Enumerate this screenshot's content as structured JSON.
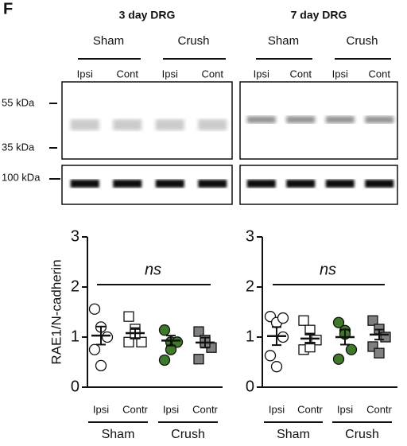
{
  "panel_label": "F",
  "markers": [
    "55 kDa",
    "35 kDa",
    "100 kDa"
  ],
  "blots": [
    {
      "title": "3 day DRG",
      "groups": [
        "Sham",
        "Crush"
      ],
      "lanes": [
        "Ipsi",
        "Cont",
        "Ipsi",
        "Cont"
      ]
    },
    {
      "title": "7 day DRG",
      "groups": [
        "Sham",
        "Crush"
      ],
      "lanes": [
        "Ipsi",
        "Cont",
        "Ipsi",
        "Cont"
      ]
    }
  ],
  "chart_data": [
    {
      "type": "dot",
      "ylabel": "RAE1/N-cadherin",
      "annotation": "ns",
      "ylim": [
        0,
        3
      ],
      "yticks": [
        0,
        1,
        2,
        3
      ],
      "categories": [
        "Ipsi",
        "Contr",
        "Ipsi",
        "Contr"
      ],
      "groups": [
        "Sham",
        "Crush"
      ],
      "colors": [
        "#ffffff",
        "#ffffff",
        "#3f7a2a",
        "#808080"
      ],
      "markers": [
        "circle",
        "square",
        "circle",
        "square"
      ],
      "points": [
        [
          1.56,
          1.2,
          1.0,
          0.75,
          0.43
        ],
        [
          1.41,
          1.16,
          0.9,
          0.9,
          1.06
        ],
        [
          1.14,
          0.9,
          0.9,
          0.54,
          0.75
        ],
        [
          1.11,
          0.94,
          0.79,
          0.56,
          0.89
        ]
      ],
      "means": [
        1.03,
        1.08,
        0.93,
        0.89
      ],
      "errors": [
        0.18,
        0.1,
        0.1,
        0.1
      ]
    },
    {
      "type": "dot",
      "annotation": "ns",
      "ylim": [
        0,
        3
      ],
      "yticks": [
        0,
        1,
        2,
        3
      ],
      "categories": [
        "Ipsi",
        "Contr",
        "Ipsi",
        "Contr"
      ],
      "groups": [
        "Sham",
        "Crush"
      ],
      "colors": [
        "#ffffff",
        "#ffffff",
        "#3f7a2a",
        "#808080"
      ],
      "markers": [
        "circle",
        "square",
        "circle",
        "square"
      ],
      "points": [
        [
          1.41,
          1.29,
          1.0,
          0.63,
          0.41,
          1.38
        ],
        [
          1.33,
          1.14,
          0.94,
          0.75,
          0.8
        ],
        [
          1.29,
          1.13,
          0.75,
          0.56,
          1.06
        ],
        [
          1.33,
          1.16,
          1.0,
          0.81,
          0.68
        ]
      ],
      "means": [
        1.02,
        0.97,
        1.0,
        1.05
      ],
      "errors": [
        0.18,
        0.1,
        0.15,
        0.1
      ]
    }
  ]
}
